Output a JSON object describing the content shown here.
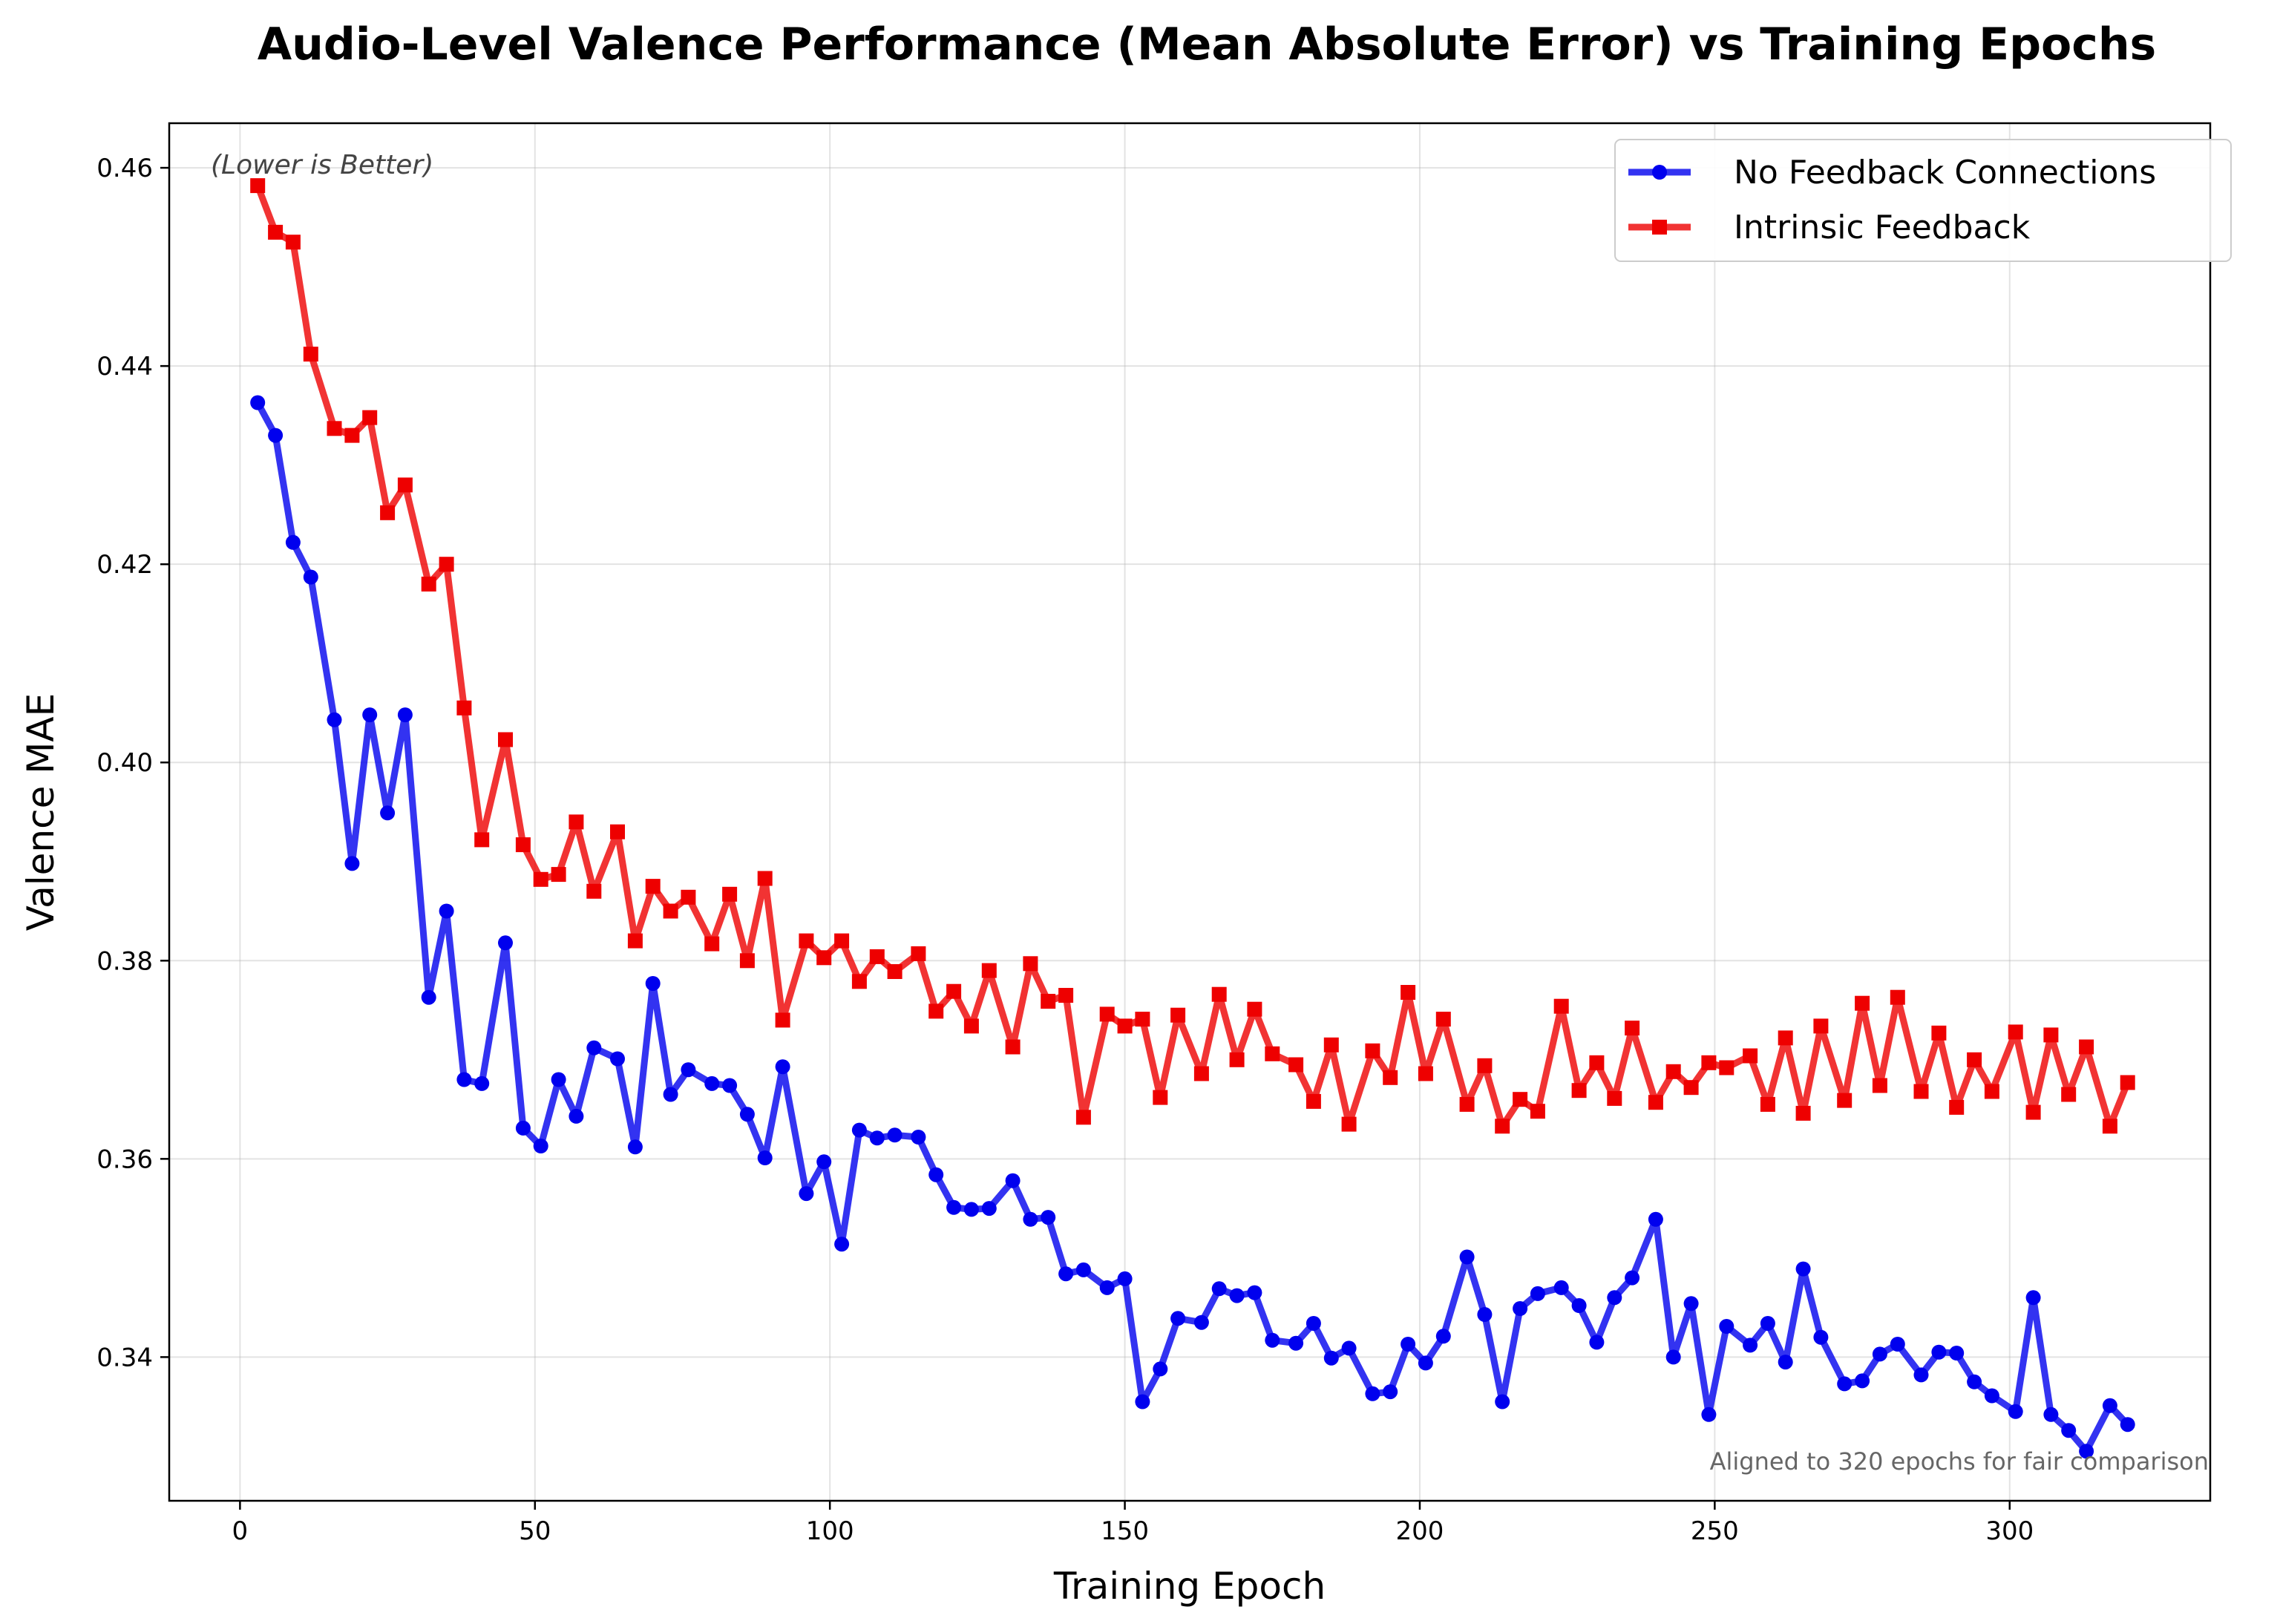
{
  "chart_data": {
    "type": "line",
    "title": "Audio-Level Valence Performance (Mean Absolute Error) vs Training Epochs",
    "xlabel": "Training Epoch",
    "ylabel": "Valence MAE",
    "xlim": [
      -12,
      334
    ],
    "ylim": [
      0.3255,
      0.4645
    ],
    "xticks": [
      0,
      50,
      100,
      150,
      200,
      250,
      300
    ],
    "yticks": [
      0.34,
      0.36,
      0.38,
      0.4,
      0.42,
      0.44,
      0.46
    ],
    "ytick_labels": [
      "0.34",
      "0.36",
      "0.38",
      "0.40",
      "0.42",
      "0.44",
      "0.46"
    ],
    "grid": true,
    "legend_position": "top-right",
    "annotations": {
      "top_left": "(Lower is Better)",
      "bottom_right": "Aligned to 320 epochs for fair comparison"
    },
    "x": [
      3,
      6,
      9,
      12,
      16,
      19,
      22,
      25,
      28,
      32,
      35,
      38,
      41,
      45,
      48,
      51,
      54,
      57,
      60,
      64,
      67,
      70,
      73,
      76,
      80,
      83,
      86,
      89,
      92,
      96,
      99,
      102,
      105,
      108,
      111,
      115,
      118,
      121,
      124,
      127,
      131,
      134,
      137,
      140,
      143,
      147,
      150,
      153,
      156,
      159,
      163,
      166,
      169,
      172,
      175,
      179,
      182,
      185,
      188,
      192,
      195,
      198,
      201,
      204,
      208,
      211,
      214,
      217,
      220,
      224,
      227,
      230,
      233,
      236,
      240,
      243,
      246,
      249,
      252,
      256,
      259,
      262,
      265,
      268,
      272,
      275,
      278,
      281,
      285,
      288,
      291,
      294,
      297,
      301,
      304,
      307,
      310,
      313,
      317,
      320
    ],
    "series": [
      {
        "name": "No Feedback Connections",
        "color": "#0000ee",
        "marker": "circle",
        "values": [
          0.4363,
          0.433,
          0.4222,
          0.4187,
          0.4043,
          0.3898,
          0.4048,
          0.3949,
          0.4048,
          0.3763,
          0.385,
          0.368,
          0.3676,
          0.3818,
          0.3631,
          0.3613,
          0.368,
          0.3643,
          0.3712,
          0.3701,
          0.3612,
          0.3777,
          0.3665,
          0.369,
          0.3676,
          0.3674,
          0.3645,
          0.3601,
          0.3693,
          0.3565,
          0.3597,
          0.3514,
          0.3629,
          0.3621,
          0.3624,
          0.3622,
          0.3584,
          0.3551,
          0.3549,
          0.355,
          0.3578,
          0.3539,
          0.3541,
          0.3484,
          0.3488,
          0.347,
          0.3479,
          0.3355,
          0.3388,
          0.3439,
          0.3435,
          0.3469,
          0.3462,
          0.3465,
          0.3417,
          0.3414,
          0.3434,
          0.3399,
          0.3409,
          0.3363,
          0.3365,
          0.3413,
          0.3394,
          0.3421,
          0.3501,
          0.3443,
          0.3355,
          0.3449,
          0.3464,
          0.347,
          0.3452,
          0.3415,
          0.346,
          0.348,
          0.3539,
          0.34,
          0.3454,
          0.3342,
          0.3431,
          0.3412,
          0.3434,
          0.3395,
          0.3489,
          0.342,
          0.3373,
          0.3376,
          0.3403,
          0.3413,
          0.3382,
          0.3405,
          0.3404,
          0.3375,
          0.3361,
          0.3345,
          0.346,
          0.3342,
          0.3326,
          0.3305,
          0.3351,
          0.3332
        ]
      },
      {
        "name": "Intrinsic Feedback",
        "color": "#ee0000",
        "marker": "square",
        "values": [
          0.4582,
          0.4535,
          0.4525,
          0.4412,
          0.4337,
          0.433,
          0.4348,
          0.4252,
          0.428,
          0.418,
          0.42,
          0.4055,
          0.3922,
          0.4023,
          0.3917,
          0.3882,
          0.3887,
          0.394,
          0.387,
          0.393,
          0.382,
          0.3875,
          0.385,
          0.3864,
          0.3817,
          0.3867,
          0.38,
          0.3883,
          0.374,
          0.382,
          0.3803,
          0.382,
          0.3779,
          0.3804,
          0.3789,
          0.3807,
          0.3749,
          0.3769,
          0.3734,
          0.379,
          0.3713,
          0.3797,
          0.3759,
          0.3765,
          0.3642,
          0.3746,
          0.3734,
          0.3741,
          0.3662,
          0.3745,
          0.3686,
          0.3766,
          0.37,
          0.3751,
          0.3706,
          0.3695,
          0.3658,
          0.3715,
          0.3635,
          0.3709,
          0.3682,
          0.3768,
          0.3686,
          0.3741,
          0.3655,
          0.3694,
          0.3633,
          0.366,
          0.3648,
          0.3754,
          0.3669,
          0.3697,
          0.3661,
          0.3732,
          0.3657,
          0.3688,
          0.3672,
          0.3697,
          0.3692,
          0.3704,
          0.3655,
          0.3722,
          0.3646,
          0.3734,
          0.3659,
          0.3757,
          0.3674,
          0.3763,
          0.3668,
          0.3727,
          0.3652,
          0.37,
          0.3668,
          0.3728,
          0.3647,
          0.3725,
          0.3665,
          0.3713,
          0.3633,
          0.3677
        ]
      }
    ]
  }
}
